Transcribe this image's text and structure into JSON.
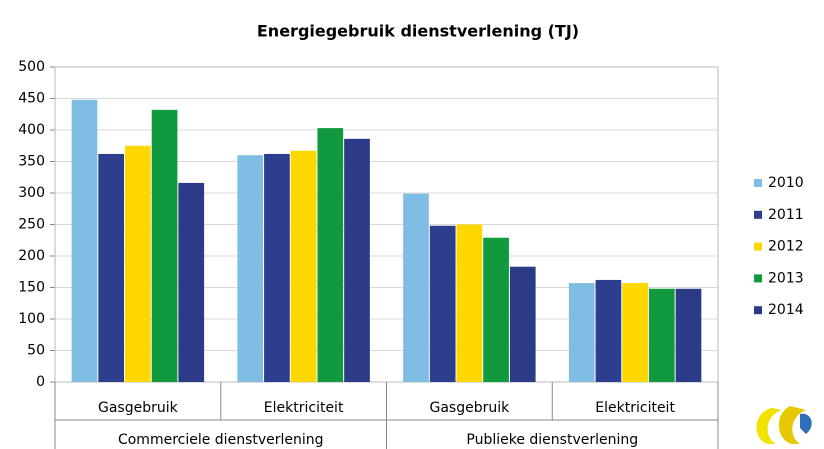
{
  "chart_data": {
    "type": "bar",
    "title": "Energiegebruik dienstverlening (TJ)",
    "categories": [
      "Gasgebruik",
      "Elektriciteit",
      "Gasgebruik",
      "Elektriciteit"
    ],
    "category_groups": [
      "Commerciele dienstverlening",
      "Publieke dienstverlening"
    ],
    "series": [
      {
        "name": "2010",
        "color": "#7fbde4",
        "values": [
          448,
          360,
          299,
          157
        ]
      },
      {
        "name": "2011",
        "color": "#2e3e8f",
        "values": [
          362,
          362,
          248,
          162
        ]
      },
      {
        "name": "2012",
        "color": "#ffd700",
        "values": [
          375,
          367,
          250,
          157
        ]
      },
      {
        "name": "2013",
        "color": "#119a3d",
        "values": [
          432,
          403,
          229,
          148
        ]
      },
      {
        "name": "2014",
        "color": "#2b3b88",
        "values": [
          316,
          386,
          183,
          148
        ]
      }
    ],
    "ylim": [
      0,
      500
    ],
    "yticks": [
      0,
      50,
      100,
      150,
      200,
      250,
      300,
      350,
      400,
      450,
      500
    ],
    "grid": true,
    "legend": "right"
  }
}
